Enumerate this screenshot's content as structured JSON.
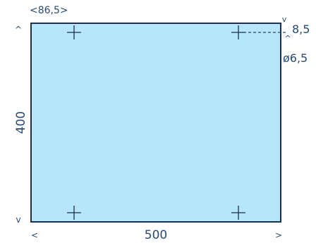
{
  "colors": {
    "panel_fill": "#b6e6f8",
    "panel_stroke": "#1c2f4c",
    "dimension_color": "#2a4a72"
  },
  "dimensions": {
    "width_label": "500",
    "height_label": "400",
    "hole_offset_x_label": "<86,5>",
    "hole_offset_y_label": "8,5",
    "hole_diameter_label": "ø6,5",
    "arrow_left": "<",
    "arrow_right": ">",
    "arrow_up": "^",
    "arrow_down": "v"
  },
  "holes": [
    {
      "name": "hole-top-left-icon"
    },
    {
      "name": "hole-top-right-icon"
    },
    {
      "name": "hole-bottom-left-icon"
    },
    {
      "name": "hole-bottom-right-icon"
    }
  ]
}
